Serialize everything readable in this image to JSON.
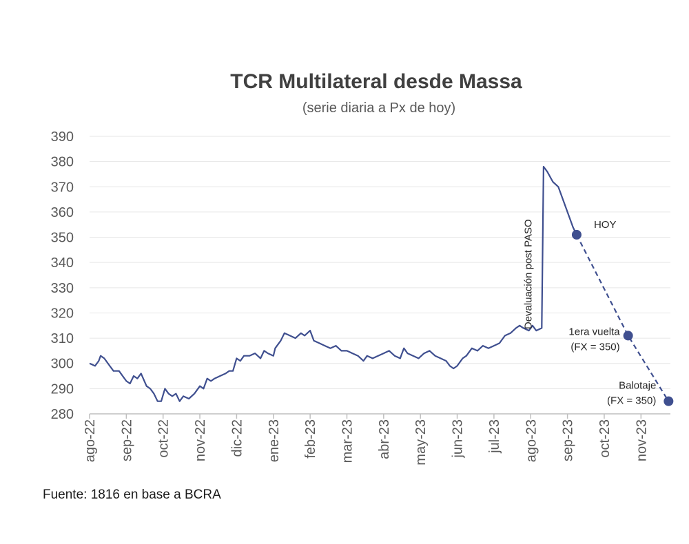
{
  "chart_data": {
    "type": "line",
    "title": "TCR Multilateral desde Massa",
    "subtitle": "(serie diaria a Px de hoy)",
    "xlabel": "",
    "ylabel": "",
    "ylim": [
      280,
      390
    ],
    "yticks": [
      280,
      290,
      300,
      310,
      320,
      330,
      340,
      350,
      360,
      370,
      380,
      390
    ],
    "xlim": [
      0,
      15.8
    ],
    "xtick_labels": [
      "ago-22",
      "sep-22",
      "oct-22",
      "nov-22",
      "dic-22",
      "ene-23",
      "feb-23",
      "mar-23",
      "abr-23",
      "may-23",
      "jun-23",
      "jul-23",
      "ago-23",
      "sep-23",
      "oct-23",
      "nov-23"
    ],
    "grid": true,
    "color": "#3f4f8f",
    "series": [
      {
        "name": "TCR Multilateral",
        "style": "solid",
        "points": [
          [
            0.0,
            300
          ],
          [
            0.15,
            299
          ],
          [
            0.25,
            301
          ],
          [
            0.3,
            303
          ],
          [
            0.4,
            302
          ],
          [
            0.55,
            299
          ],
          [
            0.65,
            297
          ],
          [
            0.8,
            297
          ],
          [
            0.9,
            295
          ],
          [
            1.0,
            293
          ],
          [
            1.1,
            292
          ],
          [
            1.2,
            295
          ],
          [
            1.3,
            294
          ],
          [
            1.4,
            296
          ],
          [
            1.55,
            291
          ],
          [
            1.65,
            290
          ],
          [
            1.75,
            288
          ],
          [
            1.85,
            285
          ],
          [
            1.95,
            285
          ],
          [
            2.05,
            290
          ],
          [
            2.15,
            288
          ],
          [
            2.25,
            287
          ],
          [
            2.35,
            288
          ],
          [
            2.45,
            285
          ],
          [
            2.55,
            287
          ],
          [
            2.7,
            286
          ],
          [
            2.85,
            288
          ],
          [
            3.0,
            291
          ],
          [
            3.1,
            290
          ],
          [
            3.2,
            294
          ],
          [
            3.3,
            293
          ],
          [
            3.4,
            294
          ],
          [
            3.55,
            295
          ],
          [
            3.7,
            296
          ],
          [
            3.8,
            297
          ],
          [
            3.9,
            297
          ],
          [
            4.0,
            302
          ],
          [
            4.1,
            301
          ],
          [
            4.2,
            303
          ],
          [
            4.35,
            303
          ],
          [
            4.5,
            304
          ],
          [
            4.65,
            302
          ],
          [
            4.75,
            305
          ],
          [
            4.85,
            304
          ],
          [
            5.0,
            303
          ],
          [
            5.05,
            306
          ],
          [
            5.2,
            309
          ],
          [
            5.3,
            312
          ],
          [
            5.45,
            311
          ],
          [
            5.6,
            310
          ],
          [
            5.75,
            312
          ],
          [
            5.85,
            311
          ],
          [
            6.0,
            313
          ],
          [
            6.1,
            309
          ],
          [
            6.25,
            308
          ],
          [
            6.4,
            307
          ],
          [
            6.55,
            306
          ],
          [
            6.7,
            307
          ],
          [
            6.85,
            305
          ],
          [
            7.0,
            305
          ],
          [
            7.15,
            304
          ],
          [
            7.3,
            303
          ],
          [
            7.45,
            301
          ],
          [
            7.55,
            303
          ],
          [
            7.7,
            302
          ],
          [
            7.85,
            303
          ],
          [
            8.0,
            304
          ],
          [
            8.15,
            305
          ],
          [
            8.3,
            303
          ],
          [
            8.45,
            302
          ],
          [
            8.55,
            306
          ],
          [
            8.65,
            304
          ],
          [
            8.8,
            303
          ],
          [
            8.95,
            302
          ],
          [
            9.1,
            304
          ],
          [
            9.25,
            305
          ],
          [
            9.4,
            303
          ],
          [
            9.55,
            302
          ],
          [
            9.7,
            301
          ],
          [
            9.8,
            299
          ],
          [
            9.9,
            298
          ],
          [
            10.0,
            299
          ],
          [
            10.15,
            302
          ],
          [
            10.25,
            303
          ],
          [
            10.4,
            306
          ],
          [
            10.55,
            305
          ],
          [
            10.7,
            307
          ],
          [
            10.85,
            306
          ],
          [
            11.0,
            307
          ],
          [
            11.15,
            308
          ],
          [
            11.3,
            311
          ],
          [
            11.45,
            312
          ],
          [
            11.6,
            314
          ],
          [
            11.7,
            315
          ],
          [
            11.8,
            314
          ],
          [
            11.95,
            313
          ],
          [
            12.05,
            315
          ],
          [
            12.15,
            313
          ],
          [
            12.3,
            314
          ],
          [
            12.35,
            378
          ],
          [
            12.45,
            376
          ],
          [
            12.6,
            372
          ],
          [
            12.75,
            370
          ],
          [
            12.9,
            364
          ],
          [
            13.05,
            358
          ],
          [
            13.15,
            354
          ],
          [
            13.25,
            351
          ]
        ]
      },
      {
        "name": "Proyección",
        "style": "dashed",
        "points": [
          [
            13.25,
            351
          ],
          [
            14.65,
            311
          ],
          [
            15.75,
            285
          ]
        ]
      }
    ],
    "markers": [
      {
        "x": 13.25,
        "y": 351,
        "label_lines": [
          "HOY"
        ]
      },
      {
        "x": 14.65,
        "y": 311,
        "label_lines": [
          "1era vuelta",
          "(FX = 350)"
        ]
      },
      {
        "x": 15.75,
        "y": 285,
        "label_lines": [
          "Balotaje",
          "(FX = 350)"
        ]
      }
    ],
    "vertical_annotation": {
      "x": 12.32,
      "y_bottom": 313,
      "y_top": 378,
      "text": "Devaluación post PASO"
    }
  },
  "source": "Fuente: 1816 en base a BCRA"
}
